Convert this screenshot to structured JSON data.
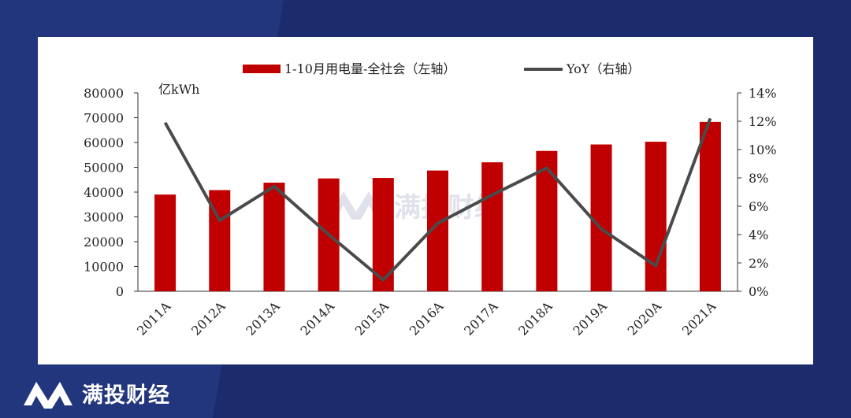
{
  "brand": {
    "name": "满投财经",
    "logo_icon": "m-logo-icon"
  },
  "colors": {
    "bar": "#c00000",
    "line": "#4a4a4a",
    "background": "#1b2b6b"
  },
  "chart_data": {
    "type": "bar+line",
    "categories": [
      "2011A",
      "2012A",
      "2013A",
      "2014A",
      "2015A",
      "2016A",
      "2017A",
      "2018A",
      "2019A",
      "2020A",
      "2021A"
    ],
    "series": [
      {
        "name": "1-10月用电量-全社会（左轴）",
        "type": "bar",
        "axis": "left",
        "values": [
          39000,
          40800,
          43800,
          45500,
          45700,
          48700,
          52000,
          56600,
          59200,
          60300,
          68300
        ]
      },
      {
        "name": "YoY（右轴）",
        "type": "line",
        "axis": "right",
        "values": [
          11.9,
          5.0,
          7.4,
          4.0,
          0.8,
          4.8,
          6.8,
          8.7,
          4.4,
          1.8,
          12.2
        ]
      }
    ],
    "left_axis": {
      "unit_label": "亿kWh",
      "min": 0,
      "max": 80000,
      "ticks": [
        "0",
        "10000",
        "20000",
        "30000",
        "40000",
        "50000",
        "60000",
        "70000",
        "80000"
      ]
    },
    "right_axis": {
      "min": 0,
      "max": 14,
      "ticks": [
        "0%",
        "2%",
        "4%",
        "6%",
        "8%",
        "10%",
        "12%",
        "14%"
      ]
    },
    "legend_position": "top",
    "watermark": "满投财经",
    "grid": false
  }
}
